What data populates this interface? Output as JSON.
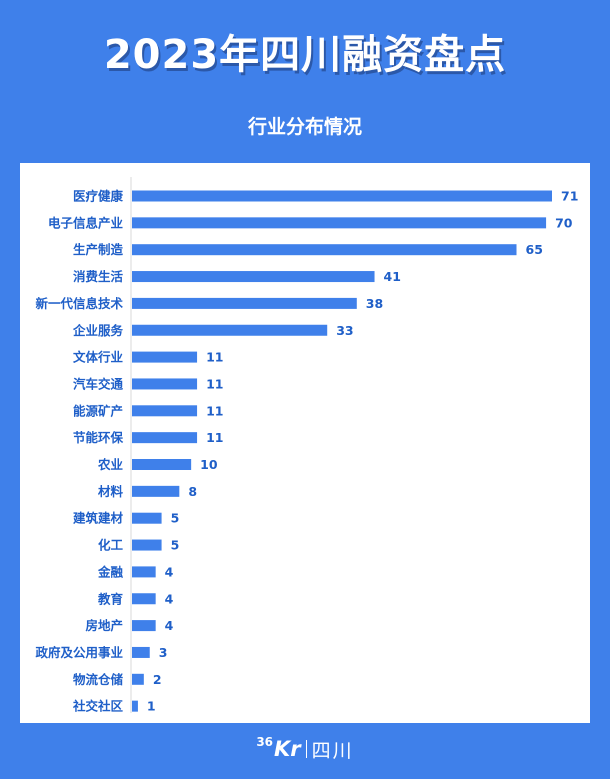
{
  "header": {
    "title": "2023年四川融资盘点",
    "subtitle": "行业分布情况"
  },
  "footer": {
    "logo_36": "36",
    "logo_kr": "Kr",
    "logo_city": "四川"
  },
  "colors": {
    "background": "#3f80ea",
    "bar": "#3f80ea",
    "label": "#1f5fc8",
    "panel": "#ffffff"
  },
  "chart_data": {
    "type": "bar",
    "orientation": "horizontal",
    "title": "行业分布情况",
    "xlabel": "",
    "ylabel": "",
    "categories": [
      "医疗健康",
      "电子信息产业",
      "生产制造",
      "消费生活",
      "新一代信息技术",
      "企业服务",
      "文体行业",
      "汽车交通",
      "能源矿产",
      "节能环保",
      "农业",
      "材料",
      "建筑建材",
      "化工",
      "金融",
      "教育",
      "房地产",
      "政府及公用事业",
      "物流仓储",
      "社交社区"
    ],
    "values": [
      71,
      70,
      65,
      41,
      38,
      33,
      11,
      11,
      11,
      11,
      10,
      8,
      5,
      5,
      4,
      4,
      4,
      3,
      2,
      1
    ],
    "xlim": [
      0,
      71
    ],
    "grid": false,
    "data_labels": true
  }
}
